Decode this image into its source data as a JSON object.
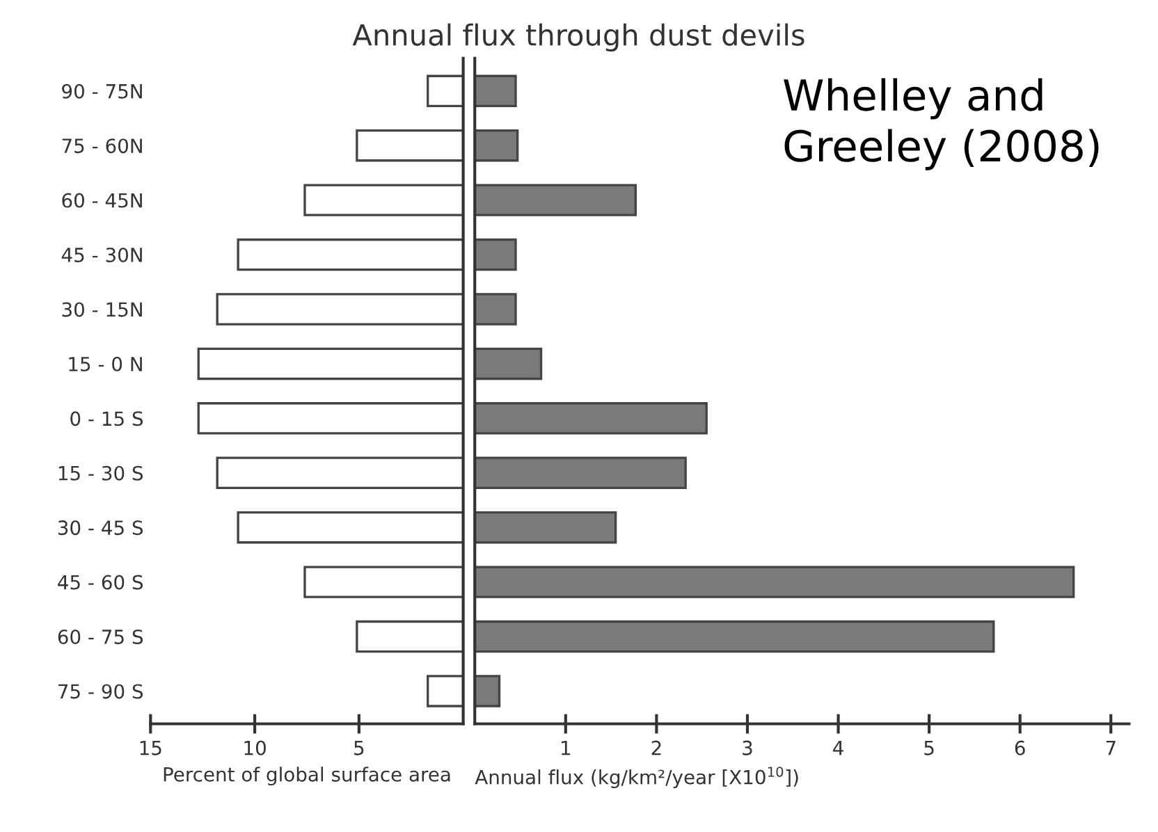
{
  "chart_data": [
    {
      "type": "bar",
      "orientation": "horizontal",
      "title": "Annual flux through dust devils",
      "xlabel": "Percent of global surface area",
      "categories": [
        "90 - 75N",
        "75 - 60N",
        "60 - 45N",
        "45 - 30N",
        "30 - 15N",
        "15 - 0 N",
        "0 - 15 S",
        "15 - 30 S",
        "30 - 45 S",
        "45 - 60 S",
        "60 - 75 S",
        "75 - 90 S"
      ],
      "values": [
        1.7,
        5.1,
        7.6,
        10.8,
        11.8,
        12.7,
        12.7,
        11.8,
        10.8,
        7.6,
        5.1,
        1.7
      ],
      "color": "#ffffff",
      "xlim": [
        15,
        0
      ],
      "xticks": [
        15,
        10,
        5
      ]
    },
    {
      "type": "bar",
      "orientation": "horizontal",
      "xlabel": "Annual flux (kg/km²/year [X10$^{10}$])",
      "annotations": [
        "Whelley and Greeley (2008)"
      ],
      "values": [
        0.45,
        0.47,
        1.77,
        0.45,
        0.45,
        0.73,
        2.55,
        2.32,
        1.55,
        6.59,
        5.71,
        0.27
      ],
      "color": "#7a7a7a",
      "xlim": [
        0,
        7.2
      ],
      "xticks": [
        1,
        2,
        3,
        4,
        5,
        6,
        7
      ],
      "tick_labels": "x"
    }
  ]
}
